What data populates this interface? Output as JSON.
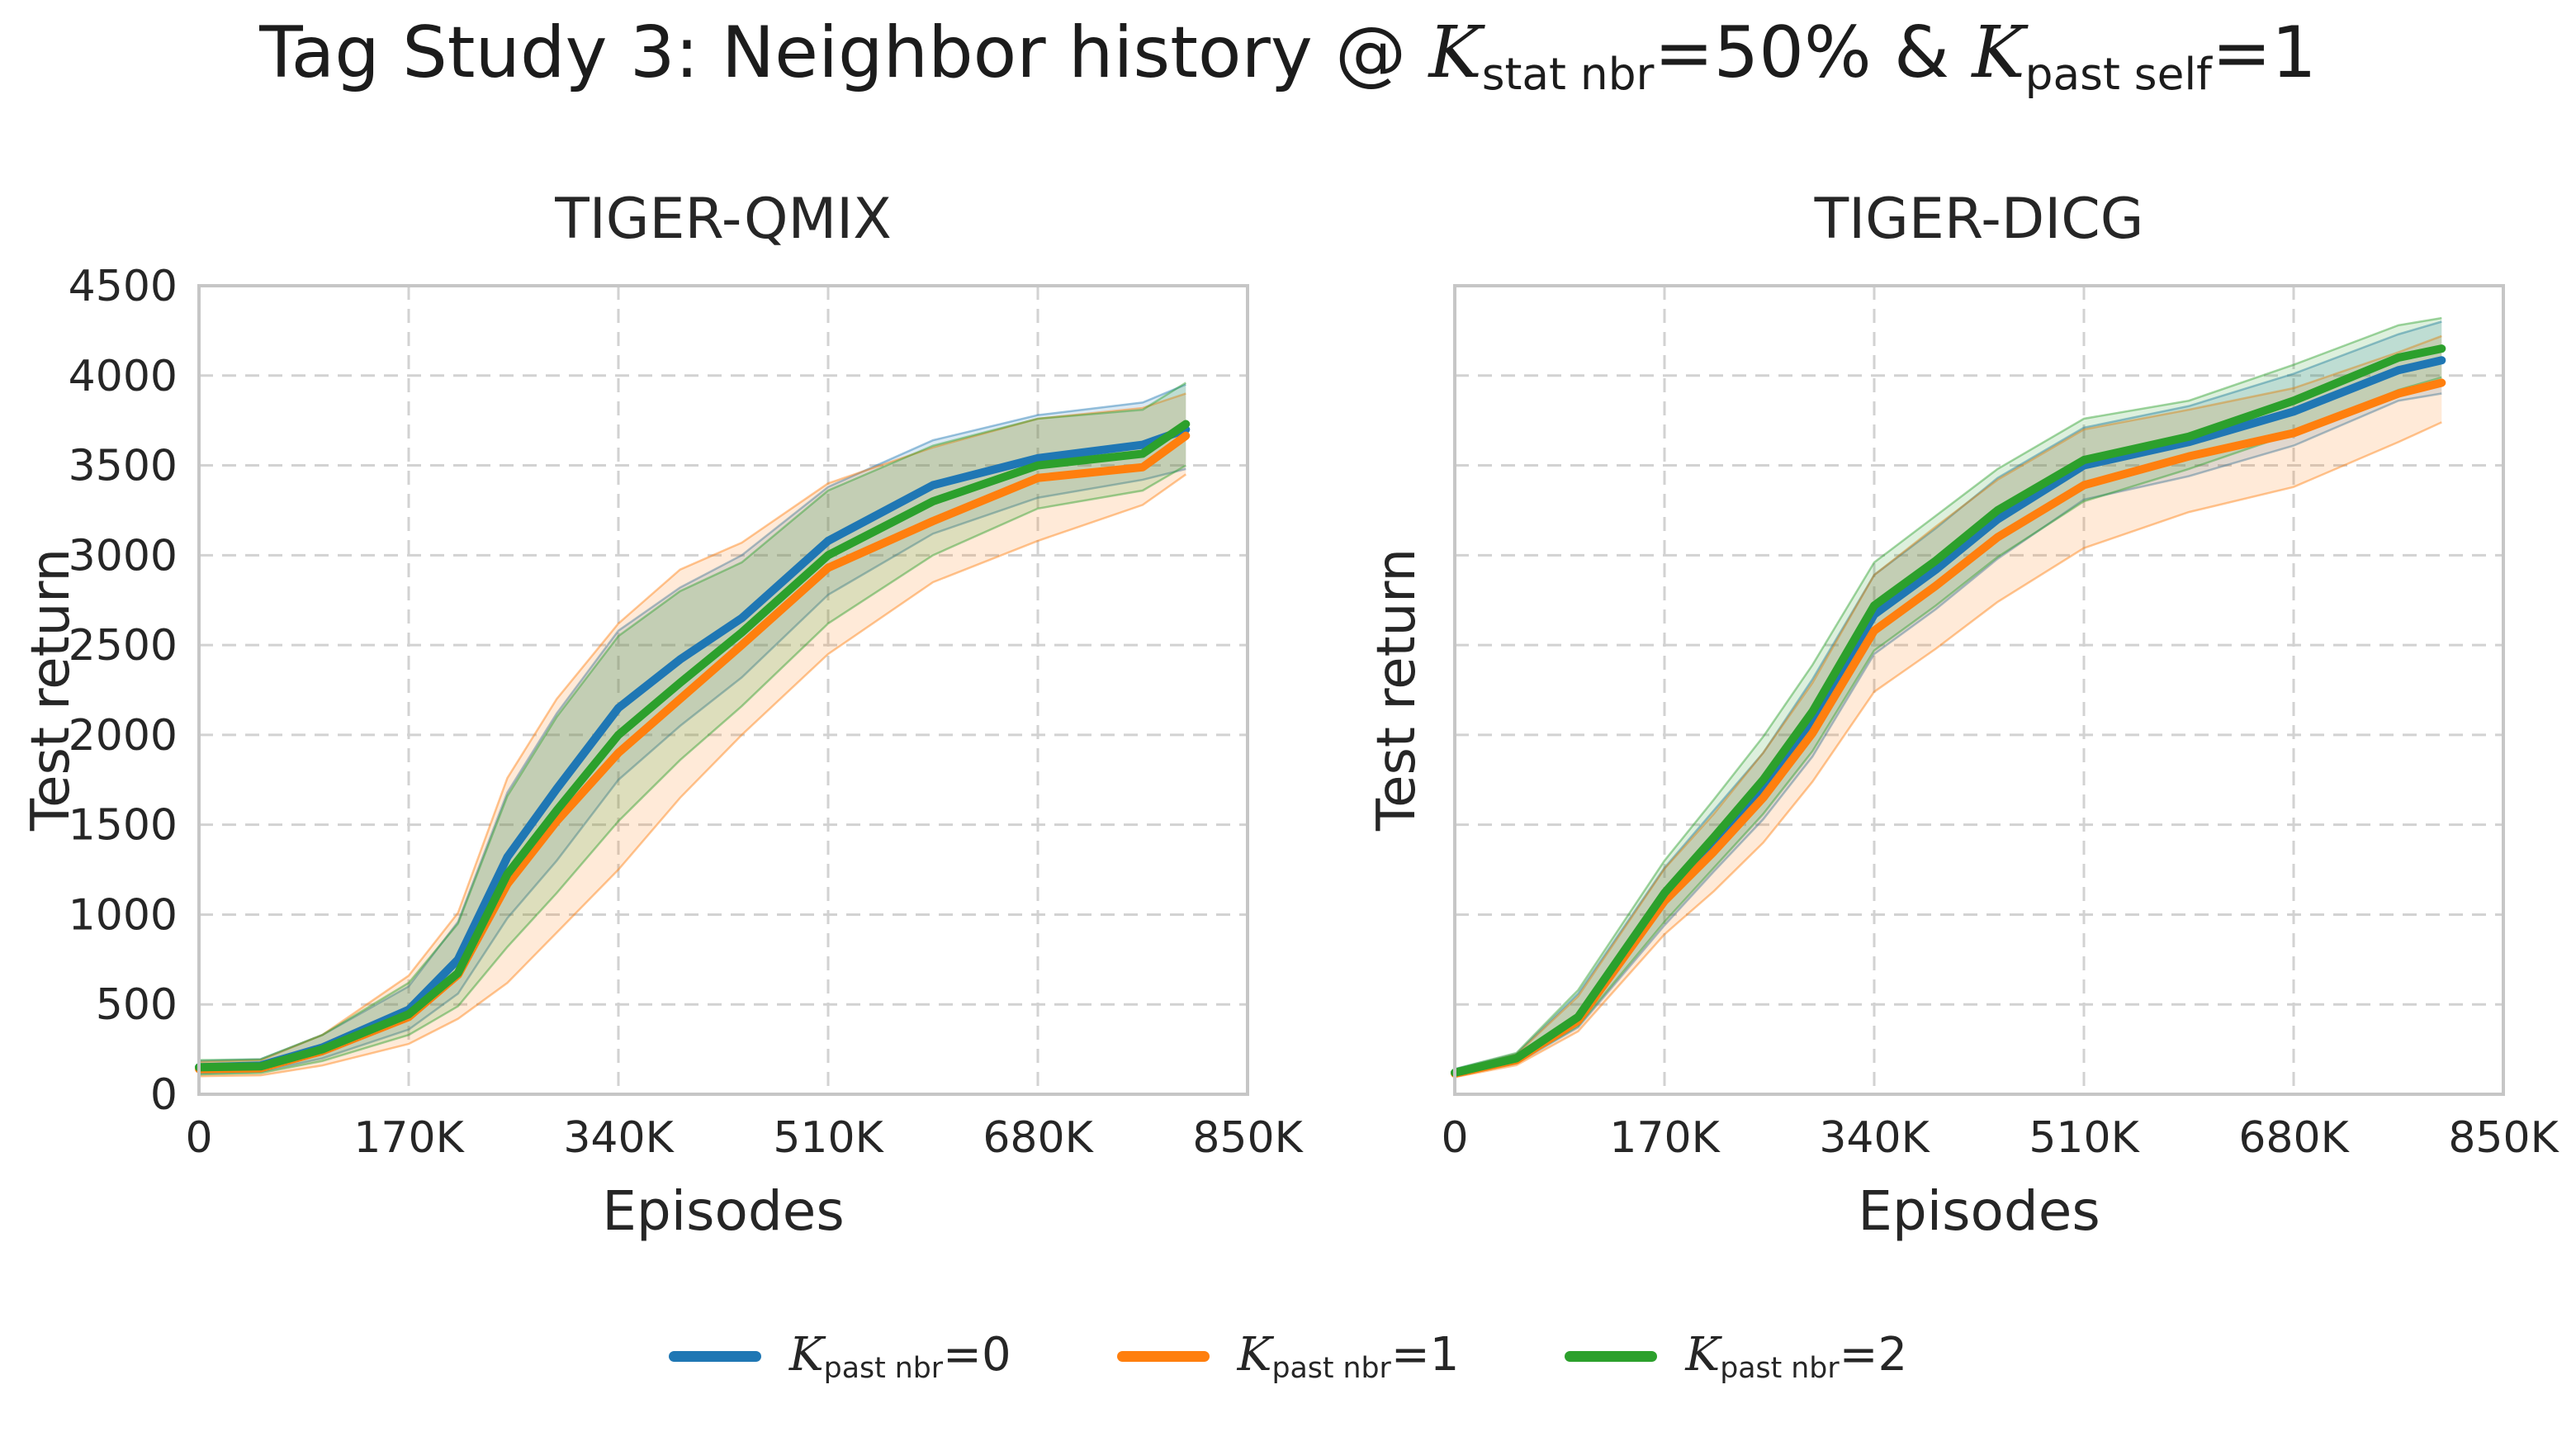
{
  "figure": {
    "title": {
      "before": "Tag Study 3: Neighbor history @ ",
      "k1": "K",
      "k1_sub": "stat nbr",
      "k1_after": "=50% & ",
      "k2": "K",
      "k2_sub": "past self",
      "k2_after": "=1"
    },
    "background": "#ffffff",
    "grid_color": "#d2d2d2",
    "spine_color": "#c6c6c6",
    "text_color": "#262626"
  },
  "legend": {
    "items": [
      {
        "k": "K",
        "sub": "past nbr",
        "after": "=0",
        "color": "#1f77b4"
      },
      {
        "k": "K",
        "sub": "past nbr",
        "after": "=1",
        "color": "#ff7f0e"
      },
      {
        "k": "K",
        "sub": "past nbr",
        "after": "=2",
        "color": "#2ca02c"
      }
    ]
  },
  "chart_data": [
    {
      "type": "line",
      "title": "TIGER-QMIX",
      "xlabel": "Episodes",
      "ylabel": "Test return",
      "xlim_episodes": [
        0,
        850000
      ],
      "ylim": [
        0,
        4500
      ],
      "grid": "dashed",
      "legend_position": "figure-bottom-center",
      "show_y_tick_labels": true,
      "x_ticks": [
        {
          "v": 0,
          "label": "0"
        },
        {
          "v": 170,
          "label": "170K"
        },
        {
          "v": 340,
          "label": "340K"
        },
        {
          "v": 510,
          "label": "510K"
        },
        {
          "v": 680,
          "label": "680K"
        },
        {
          "v": 850,
          "label": "850K"
        }
      ],
      "y_ticks": [
        {
          "v": 0,
          "label": "0"
        },
        {
          "v": 500,
          "label": "500"
        },
        {
          "v": 1000,
          "label": "1000"
        },
        {
          "v": 1500,
          "label": "1500"
        },
        {
          "v": 2000,
          "label": "2000"
        },
        {
          "v": 2500,
          "label": "2500"
        },
        {
          "v": 3000,
          "label": "3000"
        },
        {
          "v": 3500,
          "label": "3500"
        },
        {
          "v": 4000,
          "label": "4000"
        },
        {
          "v": 4500,
          "label": "4500"
        }
      ],
      "x_unit": "episodes (thousands)",
      "x": [
        0,
        50,
        100,
        170,
        210,
        250,
        290,
        340,
        390,
        440,
        510,
        595,
        680,
        765,
        800
      ],
      "series": [
        {
          "name": "K_past nbr=0",
          "color": "#1f77b4",
          "values": [
            150,
            160,
            260,
            470,
            750,
            1320,
            1700,
            2150,
            2420,
            2650,
            3080,
            3390,
            3540,
            3615,
            3700
          ],
          "band_lo": [
            115,
            125,
            200,
            360,
            560,
            980,
            1300,
            1750,
            2050,
            2320,
            2780,
            3120,
            3320,
            3420,
            3480
          ],
          "band_hi": [
            185,
            195,
            330,
            600,
            960,
            1680,
            2120,
            2580,
            2820,
            3000,
            3380,
            3640,
            3780,
            3850,
            3950
          ]
        },
        {
          "name": "K_past nbr=1",
          "color": "#ff7f0e",
          "values": [
            140,
            145,
            240,
            430,
            665,
            1170,
            1520,
            1900,
            2200,
            2500,
            2930,
            3190,
            3430,
            3490,
            3665
          ],
          "band_lo": [
            100,
            105,
            160,
            280,
            420,
            620,
            900,
            1250,
            1650,
            2000,
            2450,
            2850,
            3080,
            3280,
            3450
          ],
          "band_hi": [
            180,
            190,
            330,
            660,
            1010,
            1760,
            2200,
            2620,
            2920,
            3070,
            3400,
            3600,
            3760,
            3820,
            3900
          ]
        },
        {
          "name": "K_past nbr=2",
          "color": "#2ca02c",
          "values": [
            150,
            155,
            250,
            445,
            675,
            1225,
            1580,
            2000,
            2290,
            2570,
            3000,
            3300,
            3500,
            3565,
            3730
          ],
          "band_lo": [
            110,
            118,
            185,
            330,
            490,
            820,
            1120,
            1520,
            1860,
            2160,
            2620,
            3000,
            3260,
            3360,
            3500
          ],
          "band_hi": [
            190,
            195,
            330,
            620,
            950,
            1660,
            2100,
            2550,
            2800,
            2960,
            3360,
            3610,
            3760,
            3810,
            3960
          ]
        }
      ]
    },
    {
      "type": "line",
      "title": "TIGER-DICG",
      "xlabel": "Episodes",
      "ylabel": "Test return",
      "xlim_episodes": [
        0,
        850000
      ],
      "ylim": [
        0,
        4500
      ],
      "grid": "dashed",
      "legend_position": "figure-bottom-center",
      "show_y_tick_labels": false,
      "x_ticks": [
        {
          "v": 0,
          "label": "0"
        },
        {
          "v": 170,
          "label": "170K"
        },
        {
          "v": 340,
          "label": "340K"
        },
        {
          "v": 510,
          "label": "510K"
        },
        {
          "v": 680,
          "label": "680K"
        },
        {
          "v": 850,
          "label": "850K"
        }
      ],
      "y_ticks": [
        {
          "v": 0,
          "label": "0"
        },
        {
          "v": 500,
          "label": "500"
        },
        {
          "v": 1000,
          "label": "1000"
        },
        {
          "v": 1500,
          "label": "1500"
        },
        {
          "v": 2000,
          "label": "2000"
        },
        {
          "v": 2500,
          "label": "2500"
        },
        {
          "v": 3000,
          "label": "3000"
        },
        {
          "v": 3500,
          "label": "3500"
        },
        {
          "v": 4000,
          "label": "4000"
        },
        {
          "v": 4500,
          "label": "4500"
        }
      ],
      "x_unit": "episodes (thousands)",
      "x": [
        0,
        50,
        100,
        170,
        210,
        250,
        290,
        340,
        390,
        440,
        510,
        595,
        680,
        765,
        800
      ],
      "series": [
        {
          "name": "K_past nbr=0",
          "color": "#1f77b4",
          "values": [
            120,
            195,
            420,
            1090,
            1395,
            1700,
            2080,
            2670,
            2920,
            3200,
            3500,
            3630,
            3800,
            4030,
            4085
          ],
          "band_lo": [
            100,
            172,
            372,
            940,
            1240,
            1530,
            1880,
            2450,
            2700,
            2980,
            3310,
            3440,
            3610,
            3860,
            3900
          ],
          "band_hi": [
            140,
            225,
            560,
            1260,
            1580,
            1900,
            2310,
            2890,
            3150,
            3430,
            3710,
            3830,
            4010,
            4230,
            4300
          ]
        },
        {
          "name": "K_past nbr=1",
          "color": "#ff7f0e",
          "values": [
            115,
            190,
            410,
            1075,
            1350,
            1650,
            2010,
            2580,
            2830,
            3100,
            3390,
            3550,
            3680,
            3900,
            3960
          ],
          "band_lo": [
            95,
            162,
            350,
            890,
            1130,
            1400,
            1740,
            2240,
            2480,
            2740,
            3040,
            3240,
            3380,
            3630,
            3740
          ],
          "band_hi": [
            135,
            222,
            545,
            1255,
            1560,
            1900,
            2290,
            2890,
            3160,
            3420,
            3700,
            3810,
            3930,
            4130,
            4220
          ]
        },
        {
          "name": "K_past nbr=2",
          "color": "#2ca02c",
          "values": [
            120,
            200,
            430,
            1120,
            1430,
            1750,
            2130,
            2720,
            2970,
            3250,
            3530,
            3660,
            3860,
            4100,
            4150
          ],
          "band_lo": [
            100,
            175,
            380,
            960,
            1260,
            1560,
            1910,
            2470,
            2720,
            2990,
            3300,
            3480,
            3680,
            3920,
            3990
          ],
          "band_hi": [
            140,
            230,
            580,
            1300,
            1640,
            1990,
            2390,
            2960,
            3220,
            3480,
            3760,
            3860,
            4060,
            4280,
            4320
          ]
        }
      ]
    }
  ]
}
